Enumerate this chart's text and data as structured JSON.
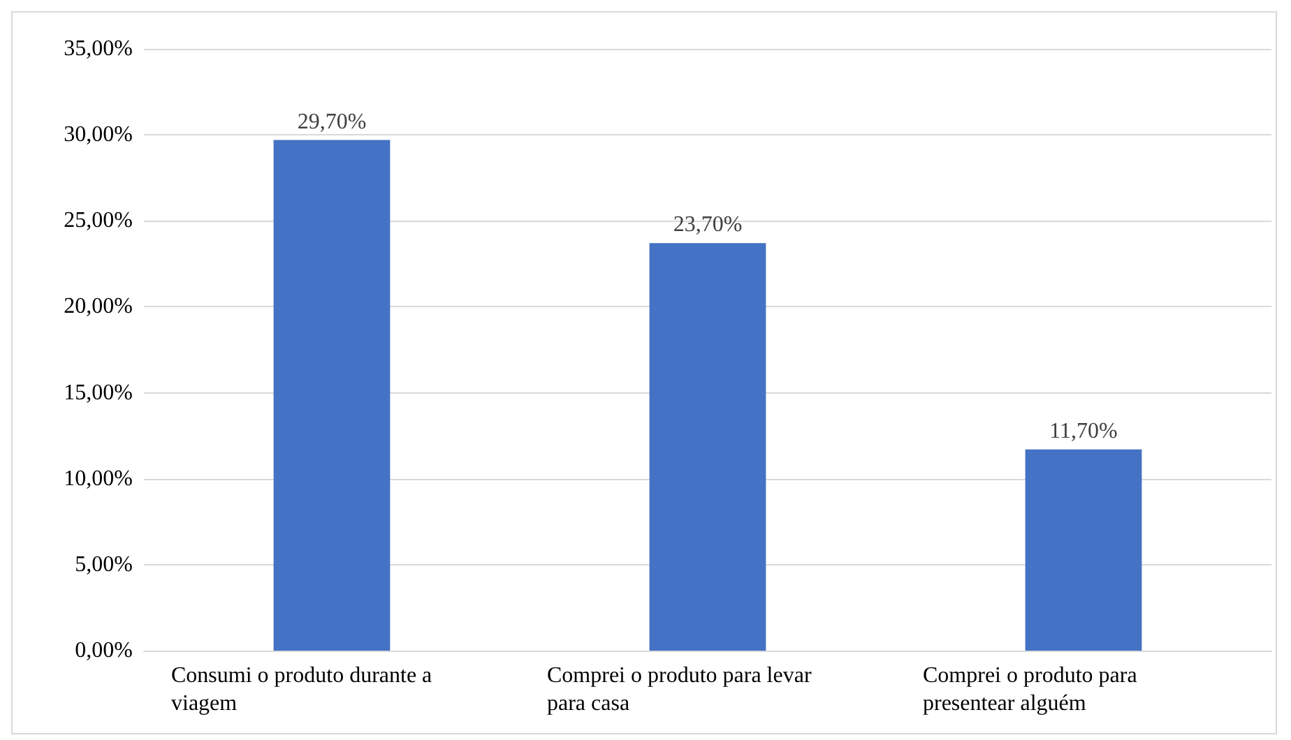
{
  "chart_data": {
    "type": "bar",
    "categories": [
      "Consumi o produto durante a viagem",
      "Comprei o produto para levar para casa",
      "Comprei o produto para presentear alguém"
    ],
    "values": [
      29.7,
      23.7,
      11.7
    ],
    "color": "#4472c4",
    "value_labels": [
      "29,70%",
      "23,70%",
      "11,70%"
    ],
    "ylim": [
      0,
      35
    ],
    "yticks": [
      {
        "value": 0,
        "label": "0,00%"
      },
      {
        "value": 5,
        "label": "5,00%"
      },
      {
        "value": 10,
        "label": "10,00%"
      },
      {
        "value": 15,
        "label": "15,00%"
      },
      {
        "value": 20,
        "label": "20,00%"
      },
      {
        "value": 25,
        "label": "25,00%"
      },
      {
        "value": 30,
        "label": "30,00%"
      },
      {
        "value": 35,
        "label": "35,00%"
      }
    ],
    "grid": "y"
  }
}
